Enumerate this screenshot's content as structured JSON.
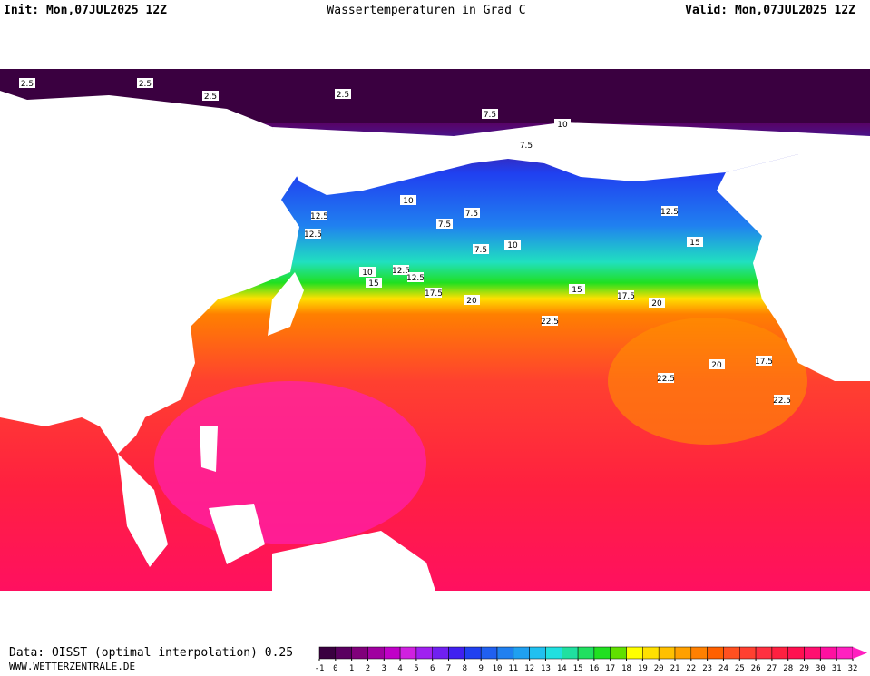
{
  "header": {
    "init": "Init: Mon,07JUL2025 12Z",
    "title": "Wassertemperaturen in Grad C",
    "valid": "Valid: Mon,07JUL2025 12Z"
  },
  "contour_labels": [
    2.5,
    2.5,
    2.5,
    2.5,
    7.5,
    10,
    7.5,
    7.5,
    7.5,
    10,
    7.5,
    10,
    12.5,
    12.5,
    10,
    12.5,
    15,
    12.5,
    17.5,
    20,
    15,
    17.5,
    20,
    22.5,
    12.5,
    15,
    17.5,
    20,
    22.5,
    22.5
  ],
  "footer": {
    "source": "Data: OISST (optimal interpolation) 0.25",
    "site": "WWW.WETTERZENTRALE.DE"
  },
  "colorbar": {
    "ticks": [
      -1,
      0,
      1,
      2,
      3,
      4,
      5,
      6,
      7,
      8,
      9,
      10,
      11,
      12,
      13,
      14,
      15,
      16,
      17,
      18,
      19,
      20,
      21,
      22,
      23,
      24,
      25,
      26,
      27,
      28,
      29,
      30,
      31,
      32
    ],
    "colors": [
      "#3a0040",
      "#5a0060",
      "#80007a",
      "#a000a0",
      "#c000c8",
      "#d020e0",
      "#a020f0",
      "#7020f0",
      "#4020f0",
      "#2040f0",
      "#2060f0",
      "#2080f0",
      "#20a0f0",
      "#20c0f0",
      "#20e0e0",
      "#20e0a0",
      "#20e060",
      "#20e020",
      "#60e000",
      "#ffff00",
      "#ffe000",
      "#ffc000",
      "#ffa000",
      "#ff8000",
      "#ff6000",
      "#ff5020",
      "#ff4030",
      "#ff3040",
      "#ff2040",
      "#ff1050",
      "#ff1070",
      "#ff10a0",
      "#ff20c0"
    ]
  }
}
